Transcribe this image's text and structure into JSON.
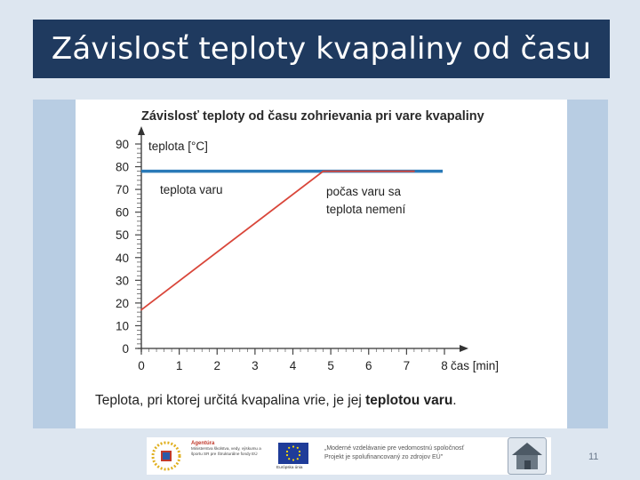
{
  "slide": {
    "title": "Závislosť teploty kvapaliny od času",
    "page_number": "11",
    "caption_normal": "Teplota, pri ktorej určitá kvapalina vrie, je jej ",
    "caption_bold": "teplotou varu",
    "caption_end": "."
  },
  "footer": {
    "agency_title": "Agentúra",
    "agency_text": "Ministerstva školstva, vedy, výskumu a športu SR pre Štrukturálne fondy EÚ",
    "eu_label": "Európska únia",
    "slogan_line1": "„Moderné vzdelávanie pre vedomostnú spoločnosť",
    "slogan_line2": "Projekt je spolufinancovaný zo zdrojov EÚ\""
  },
  "chart_data": {
    "type": "line",
    "title": "Závislosť teploty od času zohrievania pri vare kvapaliny",
    "xlabel": "čas [min]",
    "ylabel": "teplota [°C]",
    "xlim": [
      0,
      8
    ],
    "ylim": [
      0,
      90
    ],
    "x_ticks": [
      0,
      1,
      2,
      3,
      4,
      5,
      6,
      7,
      8
    ],
    "y_ticks": [
      0,
      10,
      20,
      30,
      40,
      50,
      60,
      70,
      80,
      90
    ],
    "colors": {
      "heating": "#d9463a",
      "boiling_point": "#2a7ab8"
    },
    "series": [
      {
        "x": [
          0,
          4.8,
          7.2
        ],
        "y": [
          17,
          78,
          78
        ]
      }
    ],
    "reference_line": {
      "y": 78,
      "x": [
        0,
        8
      ]
    },
    "annotations": [
      {
        "text": "teplota varu"
      },
      {
        "text": "počas varu sa"
      },
      {
        "text": "teplota nemení"
      }
    ]
  }
}
